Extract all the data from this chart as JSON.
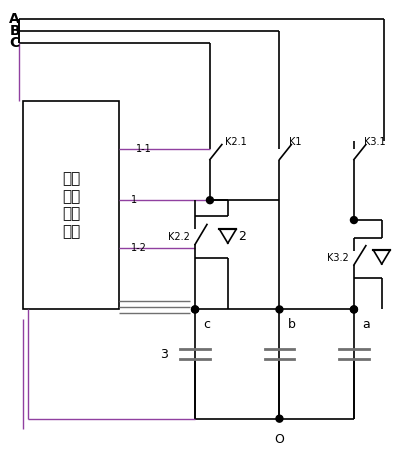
{
  "bg_color": "#ffffff",
  "line_color": "#000000",
  "purple_color": "#9040a0",
  "gray_color": "#707070",
  "box_text": "复合\n开关\n控制\n系统",
  "bus_labels": [
    "A",
    "B",
    "C"
  ],
  "switch_top_labels": [
    "K2.1",
    "K1",
    "K3.1"
  ],
  "switch_bot_labels": [
    "K2.2",
    "K3.2"
  ],
  "node_labels": [
    "1-1",
    "1",
    "1-2"
  ],
  "cap_labels": [
    "c",
    "b",
    "a"
  ],
  "digit_labels": [
    "2",
    "3",
    "O"
  ],
  "figsize": [
    4.03,
    4.54
  ],
  "dpi": 100
}
